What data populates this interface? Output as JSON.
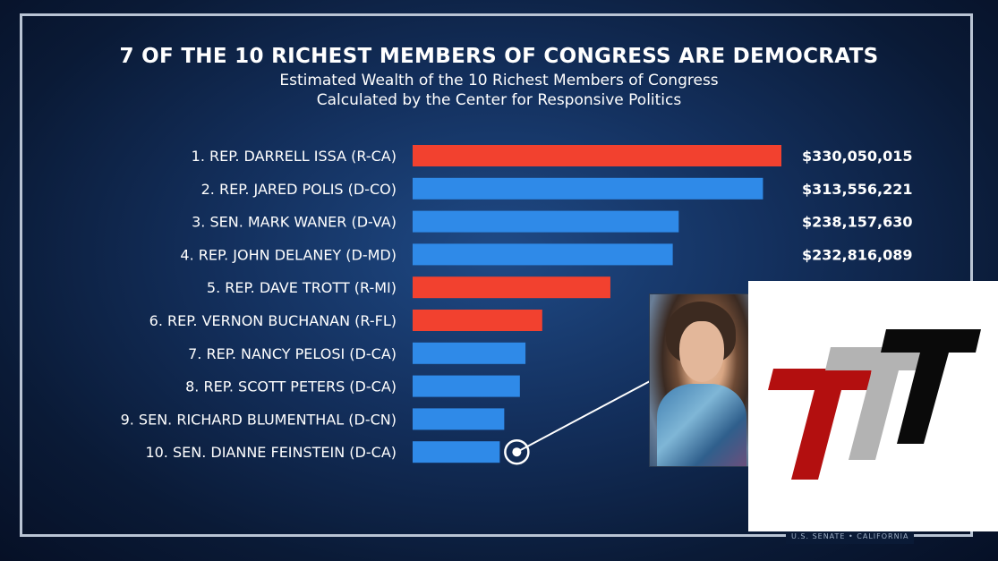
{
  "title": "7 OF THE 10 RICHEST MEMBERS OF CONGRESS ARE DEMOCRATS",
  "subtitle_line1": "Estimated Wealth of the 10 Richest Members of Congress",
  "subtitle_line2": "Calculated by the Center for Responsive Politics",
  "footer_tag": "U.S. SENATE • CALIFORNIA",
  "colors": {
    "republican": "#f2412f",
    "democrat": "#2f8ae8"
  },
  "chart_data": {
    "type": "bar",
    "orientation": "horizontal",
    "categories": [
      "1. REP. DARRELL ISSA (R-CA)",
      "2. REP. JARED POLIS (D-CO)",
      "3. SEN. MARK WANER (D-VA)",
      "4. REP. JOHN DELANEY (D-MD)",
      "5. REP. DAVE TROTT (R-MI)",
      "6. REP. VERNON BUCHANAN (R-FL)",
      "7. REP. NANCY PELOSI (D-CA)",
      "8. REP. SCOTT PETERS (D-CA)",
      "9. SEN. RICHARD BLUMENTHAL (D-CN)",
      "10. SEN. DIANNE FEINSTEIN (D-CA)"
    ],
    "values": [
      330050015,
      313556221,
      238157630,
      232816089,
      177000000,
      116000000,
      101000000,
      96000000,
      82000000,
      78000000
    ],
    "party": [
      "R",
      "D",
      "D",
      "D",
      "R",
      "R",
      "D",
      "D",
      "D",
      "D"
    ],
    "value_labels": [
      "$330,050,015",
      "$313,556,221",
      "$238,157,630",
      "$232,816,089",
      "",
      "",
      "",
      "",
      "",
      ""
    ],
    "highlighted_index": 9,
    "xlim": [
      0,
      330050015
    ]
  }
}
